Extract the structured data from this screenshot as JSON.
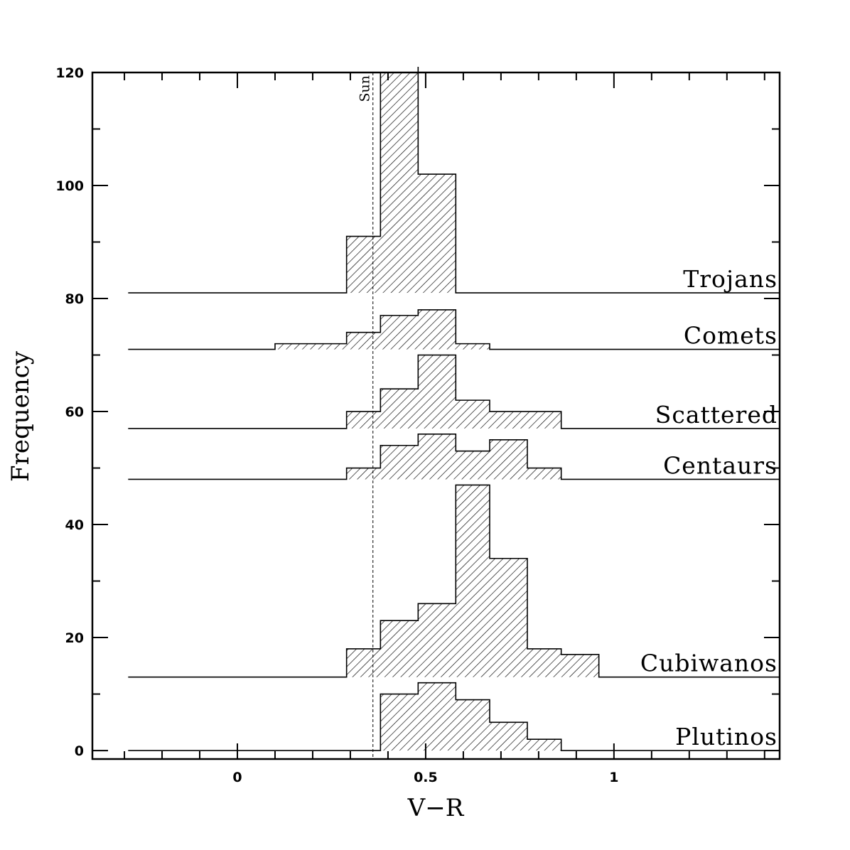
{
  "chart_data": {
    "type": "bar",
    "xlabel": "V−R",
    "ylabel": "Frequency",
    "xlim": [
      -0.385,
      1.44
    ],
    "ylim": [
      -1.5,
      120
    ],
    "x_ticks": [
      0,
      0.5,
      1
    ],
    "x_tick_labels": [
      "0",
      "0.5",
      "1"
    ],
    "y_ticks": [
      0,
      20,
      40,
      60,
      80,
      100,
      120
    ],
    "y_tick_labels": [
      "0",
      "20",
      "40",
      "60",
      "80",
      "100",
      "120"
    ],
    "grid": false,
    "legend": "none",
    "reference_line": {
      "x": 0.36,
      "label": "Sun",
      "style": "dashed"
    },
    "x_start": -0.29,
    "x_end": 1.44,
    "series": [
      {
        "name": "Trojans",
        "baseline": 81,
        "bins": [
          {
            "x0": 0.29,
            "x1": 0.38,
            "y": 91
          },
          {
            "x0": 0.38,
            "x1": 0.48,
            "y": 121
          },
          {
            "x0": 0.48,
            "x1": 0.58,
            "y": 102
          }
        ]
      },
      {
        "name": "Comets",
        "baseline": 71,
        "bins": [
          {
            "x0": 0.1,
            "x1": 0.29,
            "y": 72
          },
          {
            "x0": 0.29,
            "x1": 0.38,
            "y": 74
          },
          {
            "x0": 0.38,
            "x1": 0.48,
            "y": 77
          },
          {
            "x0": 0.48,
            "x1": 0.58,
            "y": 78
          },
          {
            "x0": 0.58,
            "x1": 0.67,
            "y": 72
          }
        ]
      },
      {
        "name": "Scattered",
        "baseline": 57,
        "bins": [
          {
            "x0": 0.29,
            "x1": 0.38,
            "y": 60
          },
          {
            "x0": 0.38,
            "x1": 0.48,
            "y": 64
          },
          {
            "x0": 0.48,
            "x1": 0.58,
            "y": 70
          },
          {
            "x0": 0.58,
            "x1": 0.67,
            "y": 62
          },
          {
            "x0": 0.67,
            "x1": 0.86,
            "y": 60
          }
        ]
      },
      {
        "name": "Centaurs",
        "baseline": 48,
        "bins": [
          {
            "x0": 0.29,
            "x1": 0.38,
            "y": 50
          },
          {
            "x0": 0.38,
            "x1": 0.48,
            "y": 54
          },
          {
            "x0": 0.48,
            "x1": 0.58,
            "y": 56
          },
          {
            "x0": 0.58,
            "x1": 0.67,
            "y": 53
          },
          {
            "x0": 0.67,
            "x1": 0.77,
            "y": 55
          },
          {
            "x0": 0.77,
            "x1": 0.86,
            "y": 50
          }
        ]
      },
      {
        "name": "Cubiwanos",
        "baseline": 13,
        "bins": [
          {
            "x0": 0.29,
            "x1": 0.38,
            "y": 18
          },
          {
            "x0": 0.38,
            "x1": 0.48,
            "y": 23
          },
          {
            "x0": 0.48,
            "x1": 0.58,
            "y": 26
          },
          {
            "x0": 0.58,
            "x1": 0.67,
            "y": 47
          },
          {
            "x0": 0.67,
            "x1": 0.77,
            "y": 34
          },
          {
            "x0": 0.77,
            "x1": 0.86,
            "y": 18
          },
          {
            "x0": 0.86,
            "x1": 0.96,
            "y": 17
          }
        ]
      },
      {
        "name": "Plutinos",
        "baseline": 0,
        "bins": [
          {
            "x0": 0.38,
            "x1": 0.48,
            "y": 10
          },
          {
            "x0": 0.48,
            "x1": 0.58,
            "y": 12
          },
          {
            "x0": 0.58,
            "x1": 0.67,
            "y": 9
          },
          {
            "x0": 0.67,
            "x1": 0.77,
            "y": 5
          },
          {
            "x0": 0.77,
            "x1": 0.86,
            "y": 2
          }
        ]
      }
    ]
  }
}
